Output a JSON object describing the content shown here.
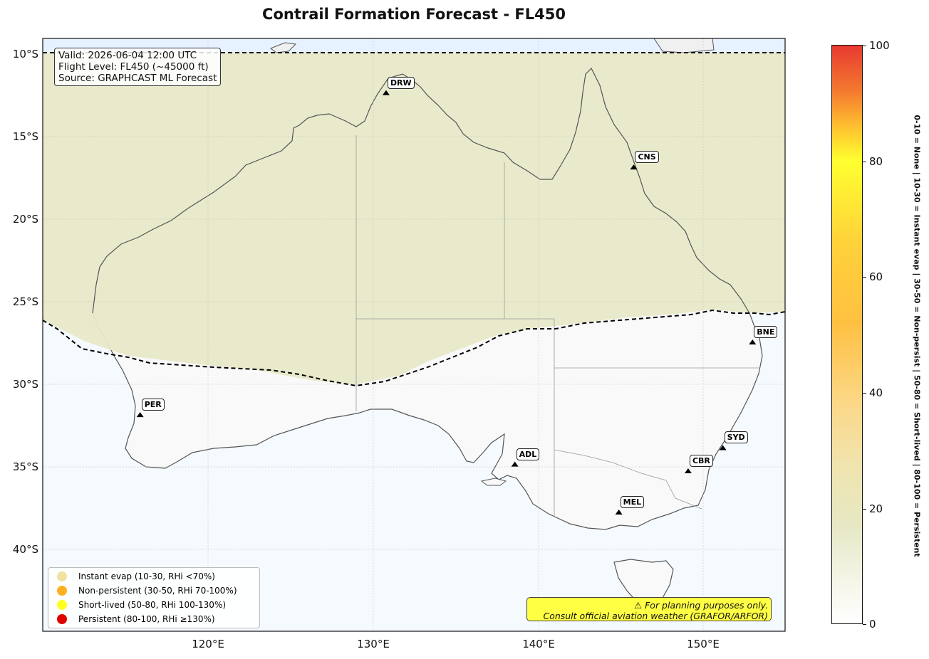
{
  "title": "Contrail Formation Forecast - FL450",
  "info": {
    "valid": "Valid: 2026-06-04 12:00 UTC",
    "flight_level": "Flight Level: FL450 (~45000 ft)",
    "source": "Source: GRAPHCAST ML Forecast"
  },
  "lat_ticks": [
    "10°S",
    "15°S",
    "20°S",
    "25°S",
    "30°S",
    "35°S",
    "40°S"
  ],
  "lon_ticks": [
    "120°E",
    "130°E",
    "140°E",
    "150°E"
  ],
  "cities": [
    {
      "code": "DRW",
      "lon": 130.8,
      "lat": -12.4
    },
    {
      "code": "CNS",
      "lon": 145.8,
      "lat": -16.9
    },
    {
      "code": "BNE",
      "lon": 153.0,
      "lat": -27.5
    },
    {
      "code": "PER",
      "lon": 115.9,
      "lat": -31.9
    },
    {
      "code": "SYD",
      "lon": 151.2,
      "lat": -33.9
    },
    {
      "code": "ADL",
      "lon": 138.6,
      "lat": -34.9
    },
    {
      "code": "CBR",
      "lon": 149.1,
      "lat": -35.3
    },
    {
      "code": "MEL",
      "lon": 144.9,
      "lat": -37.8
    }
  ],
  "legend": [
    {
      "label": "Instant evap (10-30, RHi <70%)",
      "color": "#f0e2a0"
    },
    {
      "label": "Non-persistent (30-50, RHi 70-100%)",
      "color": "#ffb020"
    },
    {
      "label": "Short-lived (50-80, RHi 100-130%)",
      "color": "#ffff22"
    },
    {
      "label": "Persistent (80-100, RHi ≥130%)",
      "color": "#e00000"
    }
  ],
  "warning": {
    "line1": "⚠ For planning purposes only.",
    "line2": "Consult official aviation weather (GRAFOR/ARFOR)"
  },
  "colorbar": {
    "ticks": [
      "0",
      "20",
      "40",
      "60",
      "80",
      "100"
    ],
    "description": "0-10 = None  |  10-30 = Instant evap  |  30-50 = Non-persist  |  50-80 = Short-lived  |  80-100 = Persistent"
  },
  "colors": {
    "ocean": "#f5faff",
    "land": "#f9f9f9",
    "contrail_zone": "#e8e9c9",
    "north_band": "#e6f2ff"
  }
}
